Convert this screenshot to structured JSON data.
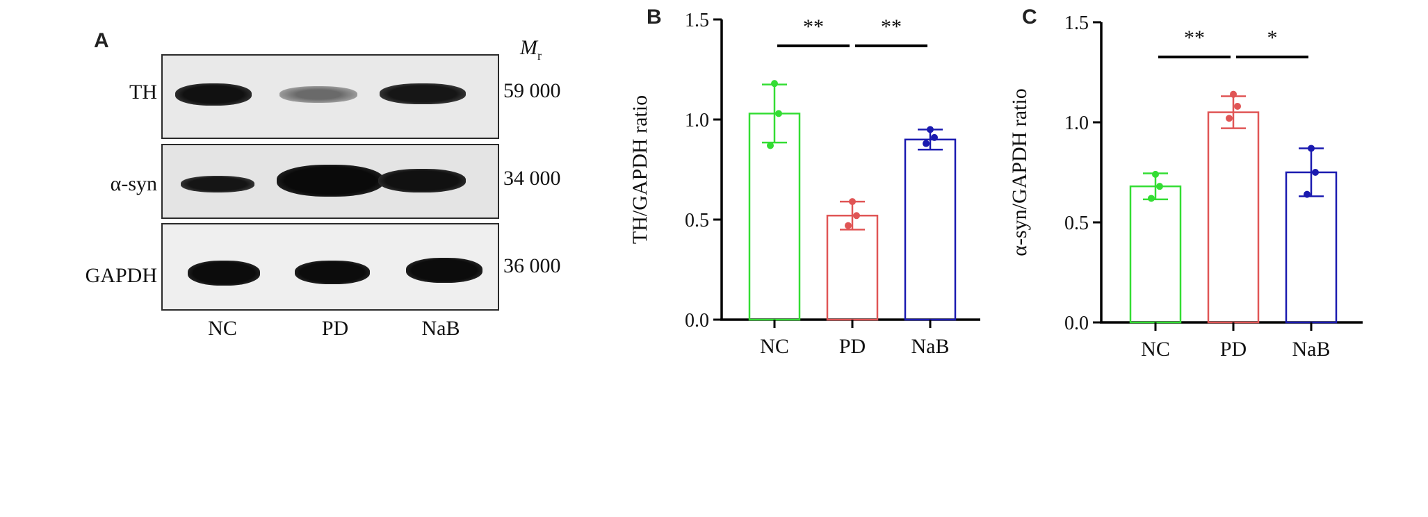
{
  "panel_a": {
    "letter": "A",
    "mr_label": "M",
    "mr_sub": "r",
    "rows": [
      {
        "label": "TH",
        "mr": "59 000"
      },
      {
        "label": "α-syn",
        "mr": "34 000"
      },
      {
        "label": "GAPDH",
        "mr": "36 000"
      }
    ],
    "lanes": [
      "NC",
      "PD",
      "NaB"
    ]
  },
  "chart_data": [
    {
      "type": "bar",
      "panel": "B",
      "categories": [
        "NC",
        "PD",
        "NaB"
      ],
      "values": [
        1.03,
        0.52,
        0.9
      ],
      "errors": [
        0.145,
        0.07,
        0.05
      ],
      "points": [
        [
          1.18,
          1.03,
          0.87
        ],
        [
          0.59,
          0.52,
          0.47
        ],
        [
          0.95,
          0.91,
          0.88
        ]
      ],
      "colors": [
        "#33dd33",
        "#e05555",
        "#1a1ab0"
      ],
      "ylabel": "TH/GAPDH ratio",
      "ylim": [
        0,
        1.5
      ],
      "yticks": [
        "0.0",
        "0.5",
        "1.0",
        "1.5"
      ],
      "significance": [
        {
          "from": 0,
          "to": 1,
          "label": "**"
        },
        {
          "from": 1,
          "to": 2,
          "label": "**"
        }
      ]
    },
    {
      "type": "bar",
      "panel": "C",
      "categories": [
        "NC",
        "PD",
        "NaB"
      ],
      "values": [
        0.68,
        1.05,
        0.75
      ],
      "errors": [
        0.065,
        0.08,
        0.12
      ],
      "points": [
        [
          0.74,
          0.68,
          0.62
        ],
        [
          1.14,
          1.08,
          1.02
        ],
        [
          0.87,
          0.75,
          0.64
        ]
      ],
      "colors": [
        "#33dd33",
        "#e05555",
        "#1a1ab0"
      ],
      "ylabel": "α-syn/GAPDH ratio",
      "ylim": [
        0,
        1.5
      ],
      "yticks": [
        "0.0",
        "0.5",
        "1.0",
        "1.5"
      ],
      "significance": [
        {
          "from": 0,
          "to": 1,
          "label": "**"
        },
        {
          "from": 1,
          "to": 2,
          "label": "*"
        }
      ]
    }
  ]
}
